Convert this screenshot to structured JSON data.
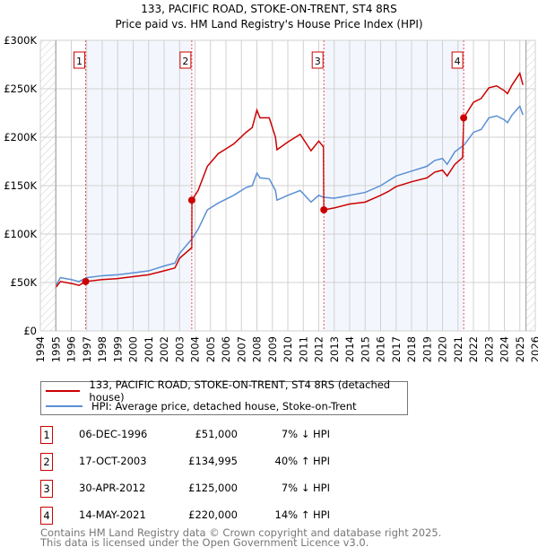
{
  "chart_data": {
    "type": "line",
    "title": "133, PACIFIC ROAD, STOKE-ON-TRENT, ST4 8RS",
    "subtitle": "Price paid vs. HM Land Registry's House Price Index (HPI)",
    "xlim": [
      1994,
      2026
    ],
    "ylim": [
      0,
      300000
    ],
    "x_ticks": [
      "1994",
      "1995",
      "1996",
      "1997",
      "1998",
      "1999",
      "2000",
      "2001",
      "2002",
      "2003",
      "2004",
      "2005",
      "2006",
      "2007",
      "2008",
      "2009",
      "2010",
      "2011",
      "2012",
      "2013",
      "2014",
      "2015",
      "2016",
      "2017",
      "2018",
      "2019",
      "2020",
      "2021",
      "2022",
      "2023",
      "2024",
      "2025",
      "2026"
    ],
    "y_ticks": [
      {
        "v": 0,
        "label": "£0"
      },
      {
        "v": 50000,
        "label": "£50K"
      },
      {
        "v": 100000,
        "label": "£100K"
      },
      {
        "v": 150000,
        "label": "£150K"
      },
      {
        "v": 200000,
        "label": "£200K"
      },
      {
        "v": 250000,
        "label": "£250K"
      },
      {
        "v": 300000,
        "label": "£300K"
      }
    ],
    "grid": true,
    "data_end": 2025.4,
    "series": [
      {
        "name": "133, PACIFIC ROAD, STOKE-ON-TRENT, ST4 8RS (detached house)",
        "color": "#cc0000",
        "x": [
          1995,
          1995.3,
          1996,
          1996.5,
          1996.93,
          1998,
          1999,
          2000,
          2001,
          2002,
          2002.7,
          2003,
          2003.79,
          2003.8,
          2004.2,
          2004.8,
          2005.5,
          2006.5,
          2007.3,
          2007.7,
          2008,
          2008.2,
          2008.8,
          2009.2,
          2009.3,
          2010,
          2010.8,
          2011.5,
          2012,
          2012.3,
          2012.33,
          2013,
          2014,
          2015,
          2016,
          2016.5,
          2017,
          2018,
          2019,
          2019.5,
          2020,
          2020.3,
          2020.8,
          2021.3,
          2021.37,
          2022,
          2022.5,
          2023,
          2023.5,
          2024,
          2024.2,
          2024.5,
          2025,
          2025.2
        ],
        "y": [
          45000,
          51000,
          49000,
          47000,
          51000,
          53000,
          54000,
          56000,
          58000,
          62000,
          65000,
          75000,
          86000,
          135000,
          145000,
          170000,
          183000,
          193000,
          205000,
          210000,
          228000,
          220000,
          220000,
          200000,
          187000,
          195000,
          203000,
          186000,
          196000,
          190000,
          125000,
          127000,
          131000,
          133000,
          140000,
          144000,
          149000,
          154000,
          158000,
          164000,
          166000,
          160000,
          172000,
          179000,
          220000,
          236000,
          240000,
          251000,
          253000,
          248000,
          245000,
          254000,
          266000,
          254000
        ]
      },
      {
        "name": "HPI: Average price, detached house, Stoke-on-Trent",
        "color": "#5b8fd4",
        "x": [
          1995,
          1995.3,
          1996,
          1996.5,
          1997,
          1998,
          1999,
          2000,
          2001,
          2002,
          2002.7,
          2003,
          2003.8,
          2004.2,
          2004.8,
          2005.5,
          2006.5,
          2007.3,
          2007.7,
          2008,
          2008.2,
          2008.8,
          2009.2,
          2009.3,
          2010,
          2010.8,
          2011.5,
          2012,
          2012.3,
          2013,
          2014,
          2015,
          2016,
          2016.5,
          2017,
          2018,
          2019,
          2019.5,
          2020,
          2020.3,
          2020.8,
          2021.4,
          2022,
          2022.5,
          2023,
          2023.5,
          2024,
          2024.2,
          2024.5,
          2025,
          2025.2
        ],
        "y": [
          47000,
          55000,
          53000,
          51000,
          55000,
          57000,
          58000,
          60000,
          62000,
          67000,
          70000,
          80000,
          95000,
          105000,
          125000,
          132000,
          140000,
          148000,
          150000,
          163000,
          158000,
          157000,
          145000,
          135000,
          140000,
          145000,
          133000,
          140000,
          138000,
          137000,
          140000,
          143000,
          150000,
          155000,
          160000,
          165000,
          170000,
          176000,
          178000,
          172000,
          185000,
          192000,
          205000,
          208000,
          220000,
          222000,
          218000,
          215000,
          223000,
          232000,
          223000
        ]
      }
    ],
    "sales": [
      {
        "n": "1",
        "x": 1996.93,
        "date": "06-DEC-1996",
        "price": "£51,000",
        "value": 51000,
        "hpi": "7% ↓ HPI"
      },
      {
        "n": "2",
        "x": 2003.79,
        "date": "17-OCT-2003",
        "price": "£134,995",
        "value": 134995,
        "hpi": "40% ↑ HPI"
      },
      {
        "n": "3",
        "x": 2012.33,
        "date": "30-APR-2012",
        "price": "£125,000",
        "value": 125000,
        "hpi": "7% ↓ HPI"
      },
      {
        "n": "4",
        "x": 2021.37,
        "date": "14-MAY-2021",
        "price": "£220,000",
        "value": 220000,
        "hpi": "14% ↑ HPI"
      }
    ]
  },
  "legend": {
    "red": "133, PACIFIC ROAD, STOKE-ON-TRENT, ST4 8RS (detached house)",
    "blue": "HPI: Average price, detached house, Stoke-on-Trent"
  },
  "footer": {
    "line1": "Contains HM Land Registry data © Crown copyright and database right 2025.",
    "line2": "This data is licensed under the Open Government Licence v3.0."
  }
}
